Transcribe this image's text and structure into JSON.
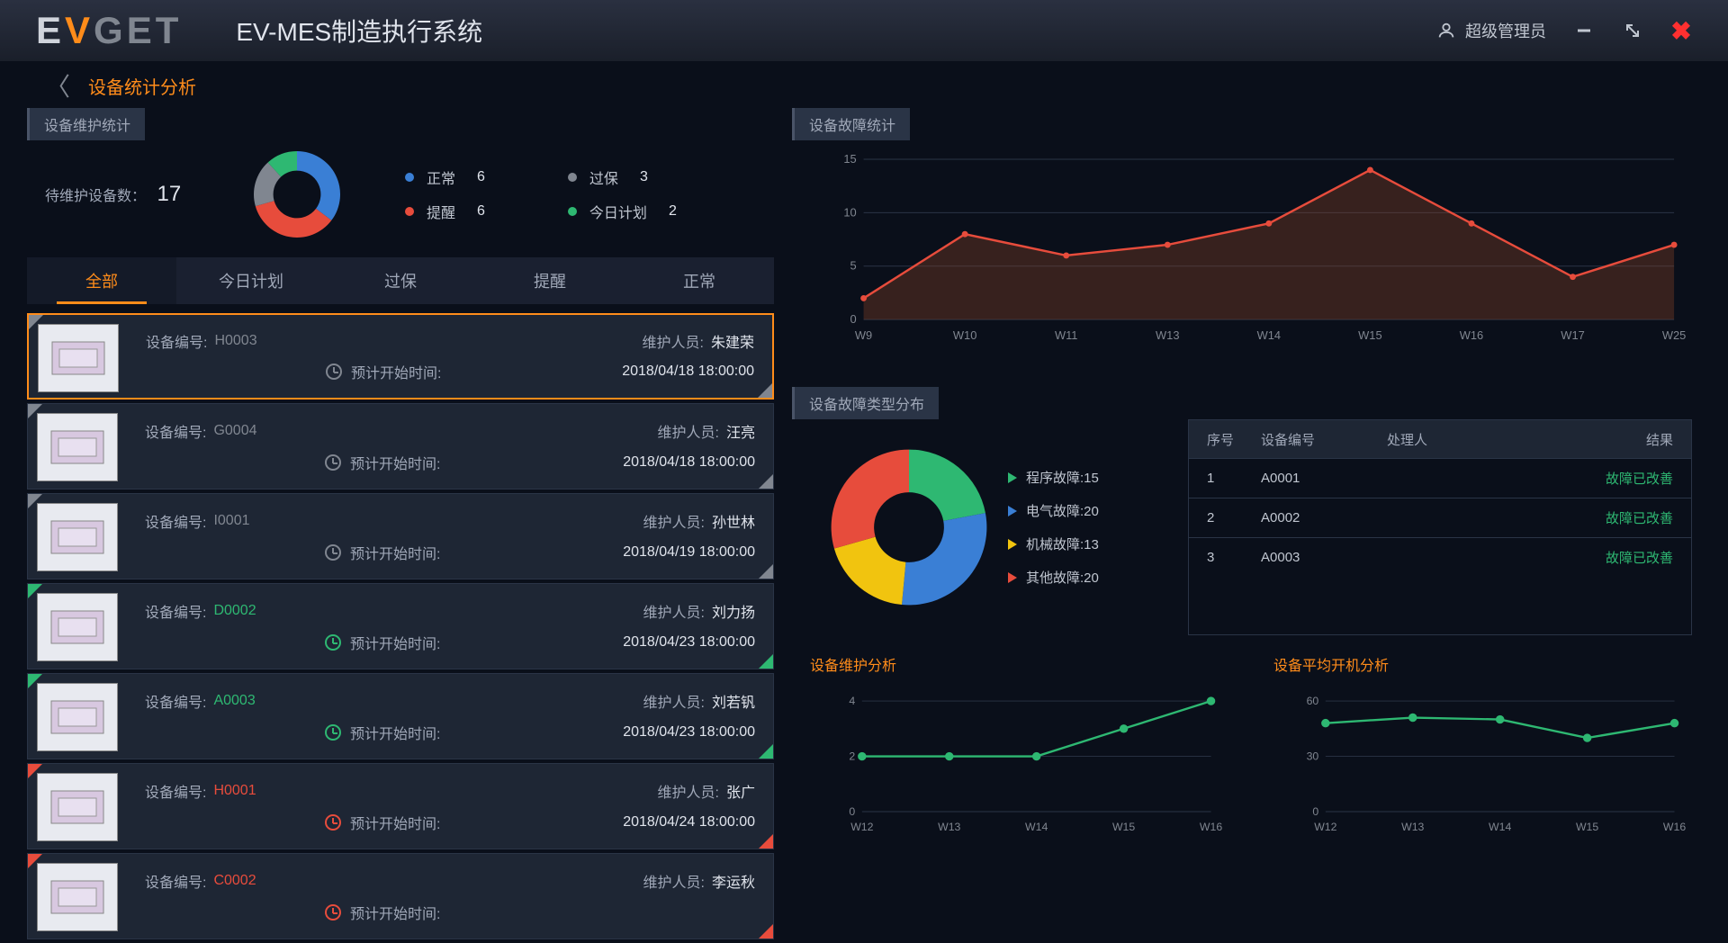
{
  "header": {
    "logo_text": "EVGET",
    "app_title": "EV-MES制造执行系统",
    "user_name": "超级管理员"
  },
  "breadcrumb": {
    "title": "设备统计分析"
  },
  "maint_summary": {
    "panel_title": "设备维护统计",
    "count_label": "待维护设备数：",
    "count": "17",
    "donut": {
      "segments": [
        {
          "value": 6,
          "color": "#3a7fd5"
        },
        {
          "value": 6,
          "color": "#e74c3c"
        },
        {
          "value": 3,
          "color": "#808690"
        },
        {
          "value": 2,
          "color": "#2eb872"
        }
      ],
      "inner_ratio": 0.55
    },
    "legend": [
      {
        "color": "#3a7fd5",
        "label": "正常",
        "value": "6"
      },
      {
        "color": "#808690",
        "label": "过保",
        "value": "3"
      },
      {
        "color": "#e74c3c",
        "label": "提醒",
        "value": "6"
      },
      {
        "color": "#2eb872",
        "label": "今日计划",
        "value": "2"
      }
    ]
  },
  "tabs": [
    {
      "label": "全部",
      "active": true
    },
    {
      "label": "今日计划",
      "active": false
    },
    {
      "label": "过保",
      "active": false
    },
    {
      "label": "提醒",
      "active": false
    },
    {
      "label": "正常",
      "active": false
    }
  ],
  "device_labels": {
    "id": "设备编号:",
    "person": "维护人员:",
    "time": "预计开始时间:"
  },
  "devices": [
    {
      "id": "H0003",
      "person": "朱建荣",
      "time": "2018/04/18 18:00:00",
      "status_color": "#808690",
      "selected": true
    },
    {
      "id": "G0004",
      "person": "汪亮",
      "time": "2018/04/18 18:00:00",
      "status_color": "#808690",
      "selected": false
    },
    {
      "id": "I0001",
      "person": "孙世林",
      "time": "2018/04/19 18:00:00",
      "status_color": "#808690",
      "selected": false
    },
    {
      "id": "D0002",
      "person": "刘力扬",
      "time": "2018/04/23 18:00:00",
      "status_color": "#2eb872",
      "selected": false
    },
    {
      "id": "A0003",
      "person": "刘若钒",
      "time": "2018/04/23 18:00:00",
      "status_color": "#2eb872",
      "selected": false
    },
    {
      "id": "H0001",
      "person": "张广",
      "time": "2018/04/24 18:00:00",
      "status_color": "#e74c3c",
      "selected": false
    },
    {
      "id": "C0002",
      "person": "李运秋",
      "time": "",
      "status_color": "#e74c3c",
      "selected": false
    }
  ],
  "fault_chart": {
    "panel_title": "设备故障统计",
    "type": "area",
    "x_labels": [
      "W9",
      "W10",
      "W11",
      "W13",
      "W14",
      "W15",
      "W16",
      "W17",
      "W25"
    ],
    "y_ticks": [
      0,
      5,
      10,
      15
    ],
    "ylim": [
      0,
      15
    ],
    "values": [
      2,
      8,
      6,
      7,
      9,
      14,
      9,
      4,
      7
    ],
    "line_color": "#e74c3c",
    "fill_color": "rgba(139,69,40,0.35)",
    "grid_color": "#2a3446"
  },
  "fault_type": {
    "panel_title": "设备故障类型分布",
    "donut": {
      "segments": [
        {
          "label": "程序故障:15",
          "value": 15,
          "color": "#2eb872"
        },
        {
          "label": "电气故障:20",
          "value": 20,
          "color": "#3a7fd5"
        },
        {
          "label": "机械故障:13",
          "value": 13,
          "color": "#f1c40f"
        },
        {
          "label": "其他故障:20",
          "value": 20,
          "color": "#e74c3c"
        }
      ],
      "inner_ratio": 0.45
    },
    "table": {
      "headers": [
        "序号",
        "设备编号",
        "处理人",
        "结果"
      ],
      "rows": [
        [
          "1",
          "A0001",
          "",
          "故障已改善"
        ],
        [
          "2",
          "A0002",
          "",
          "故障已改善"
        ],
        [
          "3",
          "A0003",
          "",
          "故障已改善"
        ]
      ],
      "result_color": "#2eb872"
    }
  },
  "bottom_left": {
    "title": "设备维护分析",
    "type": "line",
    "x_labels": [
      "W12",
      "W13",
      "W14",
      "W15",
      "W16"
    ],
    "y_ticks": [
      0,
      2,
      4
    ],
    "ylim": [
      0,
      4
    ],
    "values": [
      2,
      2,
      2,
      3,
      4
    ],
    "line_color": "#2eb872",
    "marker_color": "#2eb872",
    "grid_color": "#2a3446"
  },
  "bottom_right": {
    "title": "设备平均开机分析",
    "type": "line",
    "x_labels": [
      "W12",
      "W13",
      "W14",
      "W15",
      "W16"
    ],
    "y_ticks": [
      0,
      30,
      60
    ],
    "ylim": [
      0,
      60
    ],
    "values": [
      48,
      51,
      50,
      40,
      48
    ],
    "line_color": "#2eb872",
    "marker_color": "#2eb872",
    "grid_color": "#2a3446"
  }
}
